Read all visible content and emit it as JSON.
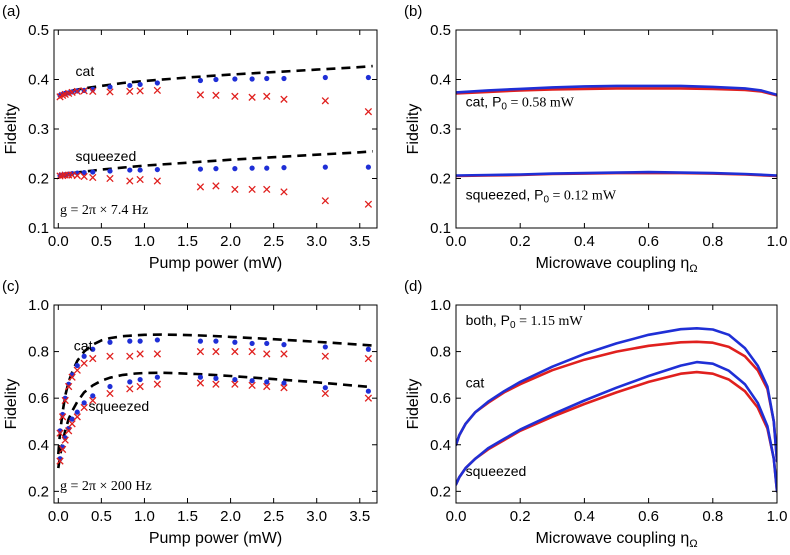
{
  "chart_data": [
    {
      "panel": "(a)",
      "type": "scatter",
      "xlabel": "Pump power (mW)",
      "ylabel": "Fidelity",
      "xlim": [
        -0.05,
        3.7
      ],
      "ylim": [
        0.1,
        0.5
      ],
      "xticks": [
        0.0,
        0.5,
        1.0,
        1.5,
        2.0,
        2.5,
        3.0,
        3.5
      ],
      "yticks": [
        0.1,
        0.2,
        0.3,
        0.4,
        0.5
      ],
      "yfmt": 1,
      "annotations": [
        {
          "text": "cat",
          "x": 0.2,
          "y": 0.407
        },
        {
          "text": "squeezed",
          "x": 0.2,
          "y": 0.235
        },
        {
          "text": "g = 2π × 7.4 Hz",
          "x": 0.02,
          "y": 0.128,
          "serif": true
        }
      ],
      "series": [
        {
          "kind": "dashed",
          "color": "#000000",
          "x": [
            0.0,
            0.05,
            0.1,
            0.2,
            0.3,
            0.5,
            0.75,
            1.0,
            1.5,
            2.0,
            2.5,
            3.0,
            3.5,
            3.65
          ],
          "y": [
            0.368,
            0.372,
            0.375,
            0.379,
            0.382,
            0.387,
            0.393,
            0.397,
            0.404,
            0.41,
            0.415,
            0.42,
            0.425,
            0.427
          ]
        },
        {
          "kind": "dashed",
          "color": "#000000",
          "x": [
            0.0,
            0.05,
            0.1,
            0.2,
            0.3,
            0.5,
            0.75,
            1.0,
            1.5,
            2.0,
            2.5,
            3.0,
            3.5,
            3.65
          ],
          "y": [
            0.205,
            0.207,
            0.209,
            0.212,
            0.214,
            0.218,
            0.222,
            0.226,
            0.232,
            0.238,
            0.243,
            0.248,
            0.253,
            0.255
          ]
        },
        {
          "kind": "dot",
          "color": "#1f2fd6",
          "x": [
            0.02,
            0.05,
            0.08,
            0.12,
            0.16,
            0.22,
            0.3,
            0.4,
            0.6,
            0.83,
            0.95,
            1.15,
            1.65,
            1.83,
            2.05,
            2.25,
            2.42,
            2.62,
            3.1,
            3.6
          ],
          "y": [
            0.368,
            0.37,
            0.372,
            0.373,
            0.375,
            0.377,
            0.378,
            0.38,
            0.385,
            0.388,
            0.39,
            0.393,
            0.398,
            0.4,
            0.401,
            0.401,
            0.402,
            0.402,
            0.404,
            0.404
          ]
        },
        {
          "kind": "cross",
          "color": "#e0201e",
          "x": [
            0.02,
            0.05,
            0.08,
            0.12,
            0.16,
            0.22,
            0.3,
            0.4,
            0.6,
            0.83,
            0.95,
            1.15,
            1.65,
            1.83,
            2.05,
            2.25,
            2.42,
            2.62,
            3.1,
            3.6
          ],
          "y": [
            0.365,
            0.368,
            0.37,
            0.372,
            0.374,
            0.376,
            0.377,
            0.376,
            0.375,
            0.376,
            0.377,
            0.378,
            0.369,
            0.368,
            0.366,
            0.364,
            0.366,
            0.36,
            0.357,
            0.335
          ]
        },
        {
          "kind": "dot",
          "color": "#1f2fd6",
          "x": [
            0.02,
            0.05,
            0.08,
            0.12,
            0.16,
            0.22,
            0.3,
            0.4,
            0.6,
            0.83,
            0.95,
            1.15,
            1.65,
            1.83,
            2.05,
            2.25,
            2.42,
            2.62,
            3.1,
            3.6
          ],
          "y": [
            0.206,
            0.207,
            0.208,
            0.209,
            0.21,
            0.211,
            0.212,
            0.213,
            0.215,
            0.217,
            0.217,
            0.218,
            0.219,
            0.22,
            0.22,
            0.221,
            0.221,
            0.222,
            0.223,
            0.223
          ]
        },
        {
          "kind": "cross",
          "color": "#e0201e",
          "x": [
            0.02,
            0.05,
            0.08,
            0.12,
            0.16,
            0.22,
            0.3,
            0.4,
            0.6,
            0.83,
            0.95,
            1.15,
            1.65,
            1.83,
            2.05,
            2.25,
            2.42,
            2.62,
            3.1,
            3.6
          ],
          "y": [
            0.205,
            0.206,
            0.207,
            0.207,
            0.207,
            0.206,
            0.204,
            0.202,
            0.2,
            0.195,
            0.198,
            0.195,
            0.183,
            0.185,
            0.178,
            0.178,
            0.178,
            0.173,
            0.155,
            0.148
          ]
        }
      ]
    },
    {
      "panel": "(b)",
      "type": "line",
      "xlabel": "Microwave coupling η",
      "xlabel_sub": "Ω",
      "ylabel": "Fidelity",
      "xlim": [
        0.0,
        1.0
      ],
      "ylim": [
        0.1,
        0.5
      ],
      "xticks": [
        0.0,
        0.2,
        0.4,
        0.6,
        0.8,
        1.0
      ],
      "yticks": [
        0.1,
        0.2,
        0.3,
        0.4,
        0.5
      ],
      "yfmt": 1,
      "annotations": [
        {
          "text": "cat, P",
          "sub": "0",
          "rest": " = 0.58 mW",
          "x": 0.03,
          "y": 0.345,
          "serifRest": true
        },
        {
          "text": "squeezed, P",
          "sub": "0",
          "rest": " = 0.12 mW",
          "x": 0.03,
          "y": 0.158,
          "serifRest": true
        }
      ],
      "series": [
        {
          "kind": "line",
          "color": "#e0201e",
          "x": [
            0.0,
            0.1,
            0.2,
            0.3,
            0.4,
            0.5,
            0.6,
            0.7,
            0.8,
            0.9,
            0.95,
            1.0
          ],
          "y": [
            0.372,
            0.375,
            0.378,
            0.38,
            0.381,
            0.382,
            0.382,
            0.382,
            0.381,
            0.379,
            0.376,
            0.368
          ]
        },
        {
          "kind": "line",
          "color": "#1f2fd6",
          "x": [
            0.0,
            0.1,
            0.2,
            0.3,
            0.4,
            0.5,
            0.6,
            0.7,
            0.8,
            0.9,
            0.95,
            1.0
          ],
          "y": [
            0.374,
            0.378,
            0.381,
            0.384,
            0.386,
            0.387,
            0.387,
            0.387,
            0.385,
            0.382,
            0.378,
            0.369
          ]
        },
        {
          "kind": "line",
          "color": "#e0201e",
          "x": [
            0.0,
            0.1,
            0.2,
            0.3,
            0.4,
            0.5,
            0.6,
            0.7,
            0.8,
            0.9,
            1.0
          ],
          "y": [
            0.205,
            0.206,
            0.207,
            0.209,
            0.21,
            0.211,
            0.211,
            0.211,
            0.21,
            0.208,
            0.205
          ]
        },
        {
          "kind": "line",
          "color": "#1f2fd6",
          "x": [
            0.0,
            0.1,
            0.2,
            0.3,
            0.4,
            0.5,
            0.6,
            0.7,
            0.8,
            0.9,
            1.0
          ],
          "y": [
            0.206,
            0.207,
            0.208,
            0.21,
            0.211,
            0.212,
            0.213,
            0.212,
            0.211,
            0.209,
            0.206
          ]
        }
      ]
    },
    {
      "panel": "(c)",
      "type": "scatter",
      "xlabel": "Pump power (mW)",
      "ylabel": "Fidelity",
      "xlim": [
        -0.05,
        3.7
      ],
      "ylim": [
        0.15,
        1.0
      ],
      "xticks": [
        0.0,
        0.5,
        1.0,
        1.5,
        2.0,
        2.5,
        3.0,
        3.5
      ],
      "yticks": [
        0.2,
        0.4,
        0.6,
        0.8,
        1.0
      ],
      "yfmt": 1,
      "annotations": [
        {
          "text": "cat",
          "x": 0.18,
          "y": 0.805
        },
        {
          "text": "squeezed",
          "x": 0.35,
          "y": 0.545
        },
        {
          "text": "g = 2π × 200 Hz",
          "x": 0.02,
          "y": 0.205,
          "serif": true
        }
      ],
      "series": [
        {
          "kind": "dashed",
          "color": "#000000",
          "x": [
            0.0,
            0.02,
            0.05,
            0.08,
            0.12,
            0.17,
            0.22,
            0.3,
            0.4,
            0.5,
            0.6,
            0.75,
            0.9,
            1.0,
            1.2,
            1.4,
            1.6,
            1.8,
            2.0,
            2.5,
            3.0,
            3.5,
            3.65
          ],
          "y": [
            0.36,
            0.45,
            0.54,
            0.61,
            0.67,
            0.72,
            0.76,
            0.8,
            0.83,
            0.848,
            0.858,
            0.866,
            0.87,
            0.872,
            0.873,
            0.872,
            0.87,
            0.867,
            0.863,
            0.853,
            0.842,
            0.83,
            0.826
          ]
        },
        {
          "kind": "dashed",
          "color": "#000000",
          "x": [
            0.0,
            0.02,
            0.05,
            0.08,
            0.12,
            0.17,
            0.22,
            0.3,
            0.4,
            0.5,
            0.6,
            0.75,
            0.9,
            1.0,
            1.2,
            1.4,
            1.6,
            1.8,
            2.0,
            2.5,
            3.0,
            3.5,
            3.65
          ],
          "y": [
            0.3,
            0.35,
            0.41,
            0.46,
            0.51,
            0.55,
            0.585,
            0.625,
            0.655,
            0.675,
            0.688,
            0.7,
            0.706,
            0.708,
            0.709,
            0.707,
            0.704,
            0.7,
            0.695,
            0.682,
            0.668,
            0.652,
            0.647
          ]
        },
        {
          "kind": "dot",
          "color": "#1f2fd6",
          "x": [
            0.02,
            0.05,
            0.08,
            0.12,
            0.16,
            0.22,
            0.3,
            0.4,
            0.6,
            0.83,
            0.95,
            1.15,
            1.65,
            1.83,
            2.05,
            2.25,
            2.42,
            2.62,
            3.1,
            3.6
          ],
          "y": [
            0.46,
            0.53,
            0.6,
            0.66,
            0.7,
            0.74,
            0.78,
            0.81,
            0.84,
            0.845,
            0.845,
            0.85,
            0.845,
            0.845,
            0.84,
            0.835,
            0.835,
            0.83,
            0.82,
            0.81
          ]
        },
        {
          "kind": "cross",
          "color": "#e0201e",
          "x": [
            0.02,
            0.05,
            0.08,
            0.12,
            0.16,
            0.22,
            0.3,
            0.4,
            0.6,
            0.83,
            0.95,
            1.15,
            1.65,
            1.83,
            2.05,
            2.25,
            2.42,
            2.62,
            3.1,
            3.6
          ],
          "y": [
            0.45,
            0.52,
            0.59,
            0.65,
            0.69,
            0.72,
            0.75,
            0.77,
            0.78,
            0.78,
            0.79,
            0.79,
            0.8,
            0.8,
            0.8,
            0.8,
            0.79,
            0.79,
            0.78,
            0.77
          ]
        },
        {
          "kind": "dot",
          "color": "#1f2fd6",
          "x": [
            0.02,
            0.05,
            0.08,
            0.12,
            0.16,
            0.22,
            0.3,
            0.4,
            0.6,
            0.83,
            0.95,
            1.15,
            1.65,
            1.83,
            2.05,
            2.25,
            2.42,
            2.62,
            3.1,
            3.6
          ],
          "y": [
            0.34,
            0.39,
            0.43,
            0.47,
            0.51,
            0.54,
            0.58,
            0.61,
            0.65,
            0.67,
            0.68,
            0.69,
            0.69,
            0.685,
            0.68,
            0.675,
            0.67,
            0.665,
            0.645,
            0.63
          ]
        },
        {
          "kind": "cross",
          "color": "#e0201e",
          "x": [
            0.02,
            0.05,
            0.08,
            0.12,
            0.16,
            0.22,
            0.3,
            0.4,
            0.6,
            0.83,
            0.95,
            1.15,
            1.65,
            1.83,
            2.05,
            2.25,
            2.42,
            2.62,
            3.1,
            3.6
          ],
          "y": [
            0.33,
            0.38,
            0.42,
            0.46,
            0.49,
            0.52,
            0.56,
            0.59,
            0.62,
            0.64,
            0.65,
            0.66,
            0.665,
            0.66,
            0.66,
            0.655,
            0.65,
            0.645,
            0.62,
            0.6
          ]
        }
      ]
    },
    {
      "panel": "(d)",
      "type": "line",
      "xlabel": "Microwave coupling η",
      "xlabel_sub": "Ω",
      "ylabel": "Fidelity",
      "xlim": [
        0.0,
        1.0
      ],
      "ylim": [
        0.15,
        1.0
      ],
      "xticks": [
        0.0,
        0.2,
        0.4,
        0.6,
        0.8,
        1.0
      ],
      "yticks": [
        0.2,
        0.4,
        0.6,
        0.8,
        1.0
      ],
      "yfmt": 1,
      "annotations": [
        {
          "text": "both, P",
          "sub": "0",
          "rest": " = 1.15 mW",
          "x": 0.03,
          "y": 0.915,
          "serifRest": true
        },
        {
          "text": "cat",
          "x": 0.03,
          "y": 0.645
        },
        {
          "text": "squeezed",
          "x": 0.03,
          "y": 0.265
        }
      ],
      "series": [
        {
          "kind": "line",
          "color": "#e0201e",
          "x": [
            0.0,
            0.01,
            0.03,
            0.06,
            0.1,
            0.15,
            0.2,
            0.3,
            0.4,
            0.5,
            0.6,
            0.7,
            0.75,
            0.8,
            0.85,
            0.9,
            0.94,
            0.97,
            0.99,
            1.0
          ],
          "y": [
            0.4,
            0.44,
            0.49,
            0.54,
            0.58,
            0.625,
            0.66,
            0.72,
            0.765,
            0.8,
            0.825,
            0.84,
            0.842,
            0.838,
            0.82,
            0.78,
            0.72,
            0.64,
            0.5,
            0.33
          ]
        },
        {
          "kind": "line",
          "color": "#1f2fd6",
          "x": [
            0.0,
            0.01,
            0.03,
            0.06,
            0.1,
            0.15,
            0.2,
            0.3,
            0.4,
            0.5,
            0.6,
            0.7,
            0.75,
            0.8,
            0.85,
            0.9,
            0.94,
            0.97,
            0.99,
            1.0
          ],
          "y": [
            0.4,
            0.44,
            0.49,
            0.54,
            0.585,
            0.63,
            0.67,
            0.735,
            0.79,
            0.835,
            0.872,
            0.896,
            0.9,
            0.895,
            0.872,
            0.815,
            0.74,
            0.65,
            0.5,
            0.33
          ]
        },
        {
          "kind": "line",
          "color": "#e0201e",
          "x": [
            0.0,
            0.01,
            0.03,
            0.06,
            0.1,
            0.15,
            0.2,
            0.3,
            0.4,
            0.5,
            0.6,
            0.7,
            0.75,
            0.8,
            0.85,
            0.9,
            0.94,
            0.97,
            0.99,
            1.0
          ],
          "y": [
            0.23,
            0.26,
            0.3,
            0.34,
            0.38,
            0.42,
            0.46,
            0.52,
            0.575,
            0.625,
            0.67,
            0.705,
            0.712,
            0.705,
            0.68,
            0.63,
            0.56,
            0.47,
            0.34,
            0.2
          ]
        },
        {
          "kind": "line",
          "color": "#1f2fd6",
          "x": [
            0.0,
            0.01,
            0.03,
            0.06,
            0.1,
            0.15,
            0.2,
            0.3,
            0.4,
            0.5,
            0.6,
            0.7,
            0.75,
            0.8,
            0.85,
            0.9,
            0.94,
            0.97,
            0.99,
            1.0
          ],
          "y": [
            0.23,
            0.26,
            0.3,
            0.34,
            0.385,
            0.425,
            0.465,
            0.53,
            0.59,
            0.645,
            0.695,
            0.74,
            0.755,
            0.748,
            0.718,
            0.66,
            0.58,
            0.48,
            0.34,
            0.2
          ]
        }
      ]
    }
  ]
}
